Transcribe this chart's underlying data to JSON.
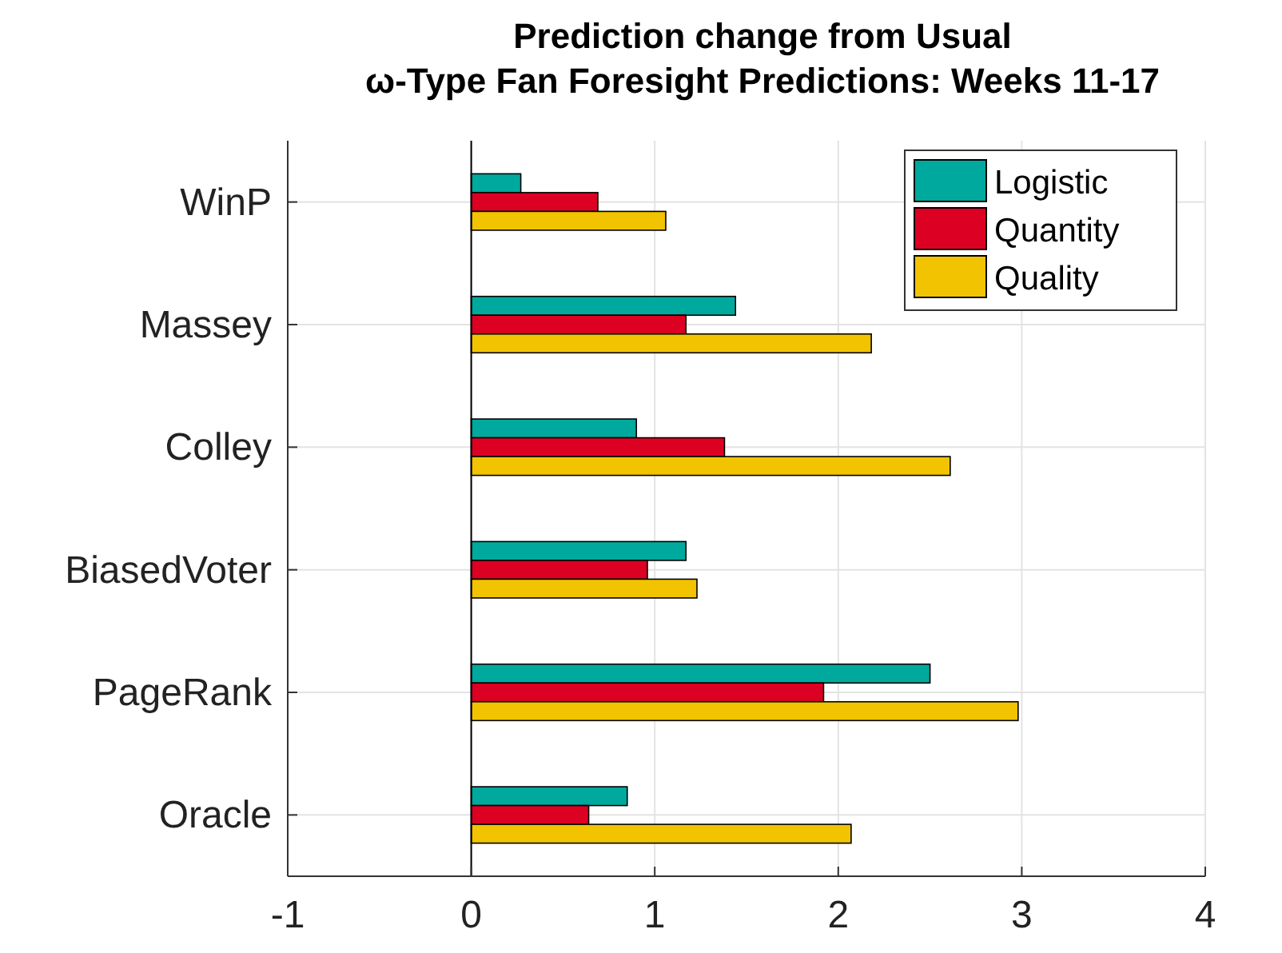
{
  "chart_data": {
    "type": "bar",
    "orientation": "horizontal",
    "title": "Prediction change from Usual\nω-Type Fan Foresight Predictions: Weeks 11-17",
    "categories": [
      "WinP",
      "Massey",
      "Colley",
      "BiasedVoter",
      "PageRank",
      "Oracle"
    ],
    "series": [
      {
        "name": "Logistic",
        "color": "#00a99d",
        "values": [
          0.27,
          1.44,
          0.9,
          1.17,
          2.5,
          0.85
        ]
      },
      {
        "name": "Quantity",
        "color": "#dc0023",
        "values": [
          0.69,
          1.17,
          1.38,
          0.96,
          1.92,
          0.64
        ]
      },
      {
        "name": "Quality",
        "color": "#f2c300",
        "values": [
          1.06,
          2.18,
          2.61,
          1.23,
          2.98,
          2.07
        ]
      }
    ],
    "xlim": [
      -1,
      4
    ],
    "xticks": [
      -1,
      0,
      1,
      2,
      3,
      4
    ],
    "grid": true,
    "legend": "top right"
  }
}
